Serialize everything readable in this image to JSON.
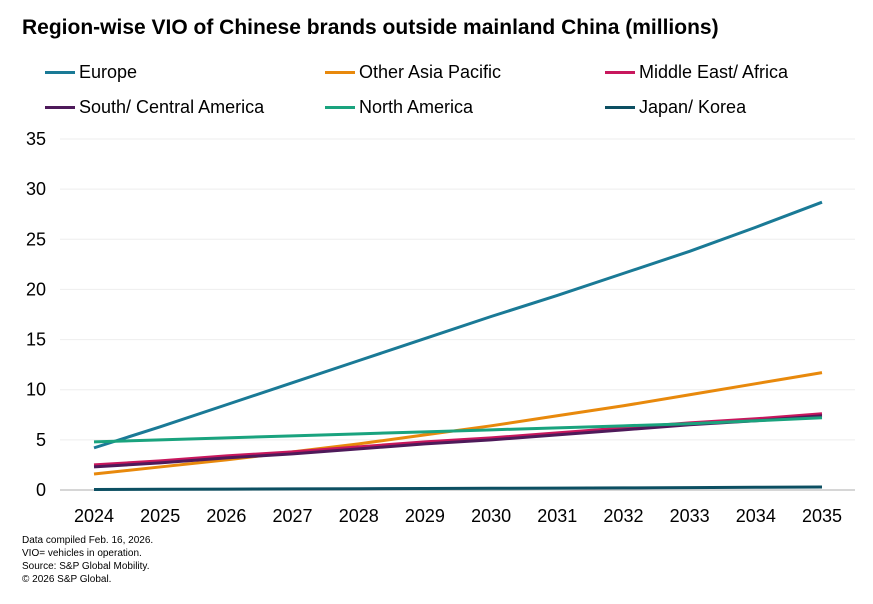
{
  "chart_data": {
    "type": "line",
    "title": "Region-wise VIO of Chinese brands outside mainland China (millions)",
    "x": [
      2024,
      2025,
      2026,
      2027,
      2028,
      2029,
      2030,
      2031,
      2032,
      2033,
      2034,
      2035
    ],
    "ylim": [
      0,
      35
    ],
    "yticks": [
      0,
      5,
      10,
      15,
      20,
      25,
      30,
      35
    ],
    "grid": true,
    "legend_placement": "top",
    "series": [
      {
        "name": "Europe",
        "color": "#1a7a96",
        "values": [
          4.2,
          6.3,
          8.5,
          10.7,
          12.9,
          15.1,
          17.3,
          19.4,
          21.6,
          23.8,
          26.2,
          28.7
        ]
      },
      {
        "name": "Other Asia Pacific",
        "color": "#e8890c",
        "values": [
          1.6,
          2.3,
          3.0,
          3.8,
          4.6,
          5.5,
          6.4,
          7.4,
          8.4,
          9.5,
          10.6,
          11.7
        ]
      },
      {
        "name": "Middle East/ Africa",
        "color": "#c8175d",
        "values": [
          2.5,
          2.9,
          3.4,
          3.8,
          4.3,
          4.8,
          5.2,
          5.7,
          6.2,
          6.7,
          7.1,
          7.6
        ]
      },
      {
        "name": "South/ Central America",
        "color": "#4e1a5a",
        "values": [
          2.3,
          2.7,
          3.2,
          3.6,
          4.1,
          4.6,
          5.0,
          5.5,
          6.0,
          6.5,
          6.9,
          7.4
        ]
      },
      {
        "name": "North America",
        "color": "#1aa37e",
        "values": [
          4.8,
          5.0,
          5.2,
          5.4,
          5.6,
          5.8,
          6.0,
          6.2,
          6.4,
          6.6,
          6.9,
          7.2
        ]
      },
      {
        "name": "Japan/ Korea",
        "color": "#0c4f62",
        "values": [
          0.05,
          0.07,
          0.09,
          0.11,
          0.13,
          0.15,
          0.17,
          0.19,
          0.21,
          0.24,
          0.27,
          0.3
        ]
      }
    ]
  },
  "notes": [
    "Data compiled Feb. 16, 2026.",
    "VIO= vehicles in operation.",
    "Source: S&P Global Mobility.",
    "© 2026 S&P Global."
  ]
}
